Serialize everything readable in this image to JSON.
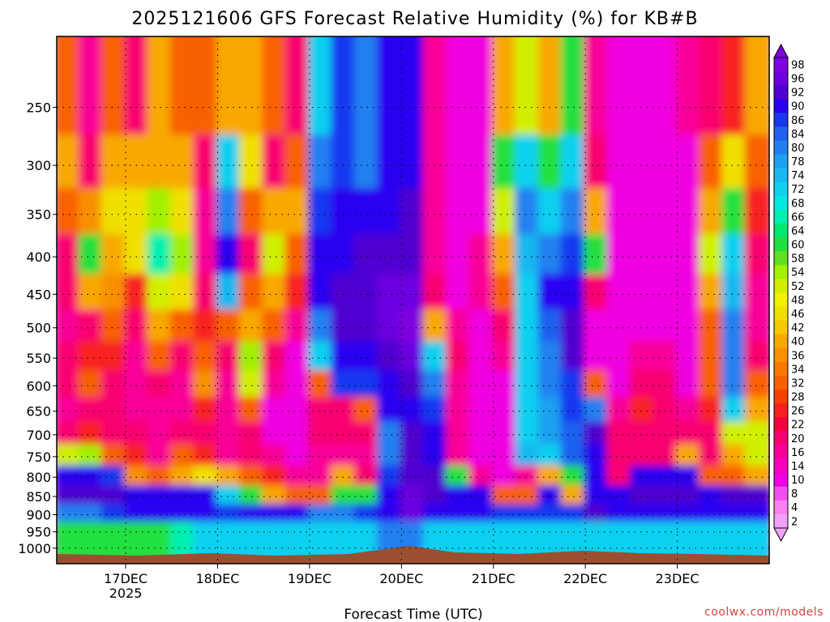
{
  "chart_data": {
    "type": "heatmap",
    "title": "2025121606 GFS Forecast Relative Humidity (%) for KB#B",
    "xlabel": "Forecast Time (UTC)",
    "ylabel": "",
    "credit": "coolwx.com/models",
    "y_axis": {
      "scale": "log-pressure",
      "reversed": true,
      "ylim": [
        1050,
        200
      ],
      "ticks": [
        "250",
        "300",
        "350",
        "400",
        "450",
        "500",
        "550",
        "600",
        "650",
        "700",
        "750",
        "800",
        "850",
        "900",
        "950",
        "1000"
      ]
    },
    "x_axis": {
      "ticks": [
        {
          "label": "17DEC",
          "sublabel": "2025"
        },
        {
          "label": "18DEC",
          "sublabel": ""
        },
        {
          "label": "19DEC",
          "sublabel": ""
        },
        {
          "label": "20DEC",
          "sublabel": ""
        },
        {
          "label": "21DEC",
          "sublabel": ""
        },
        {
          "label": "22DEC",
          "sublabel": ""
        },
        {
          "label": "23DEC",
          "sublabel": ""
        }
      ]
    },
    "grid": true,
    "colorbar": {
      "labels": [
        "98",
        "96",
        "92",
        "90",
        "86",
        "84",
        "80",
        "78",
        "74",
        "72",
        "68",
        "66",
        "64",
        "60",
        "58",
        "54",
        "52",
        "48",
        "46",
        "42",
        "40",
        "36",
        "34",
        "32",
        "28",
        "26",
        "22",
        "20",
        "16",
        "14",
        "10",
        "8",
        "4",
        "2"
      ],
      "colors": [
        "#8000e0",
        "#6c00e0",
        "#5000d0",
        "#2a00f0",
        "#1838f0",
        "#1e60f0",
        "#2080f0",
        "#1ea0f0",
        "#18b8f0",
        "#10d0f0",
        "#00e8e0",
        "#00f0b0",
        "#00e870",
        "#20e040",
        "#60e020",
        "#a0f000",
        "#d0f000",
        "#f0f000",
        "#f0e000",
        "#f8c800",
        "#f8a800",
        "#f89000",
        "#f87800",
        "#f86000",
        "#f84000",
        "#f82020",
        "#f80040",
        "#f80070",
        "#f80098",
        "#f800c0",
        "#f000e0",
        "#f050f0",
        "#f880f0",
        "#f0a0f8"
      ],
      "placement": "right"
    },
    "series": [
      {
        "time": "16DEC06",
        "humidity": [
          30,
          40,
          30,
          20,
          20,
          15,
          20,
          20,
          15,
          20,
          50,
          88,
          92,
          80,
          60
        ]
      },
      {
        "time": "16DEC12",
        "humidity": [
          15,
          20,
          35,
          60,
          40,
          20,
          25,
          30,
          20,
          25,
          55,
          88,
          92,
          80,
          60
        ]
      },
      {
        "time": "16DEC18",
        "humidity": [
          30,
          40,
          45,
          40,
          35,
          30,
          25,
          20,
          20,
          20,
          30,
          85,
          92,
          85,
          60
        ]
      },
      {
        "time": "17DEC00",
        "humidity": [
          20,
          40,
          45,
          45,
          25,
          20,
          15,
          15,
          15,
          20,
          25,
          35,
          90,
          88,
          60
        ]
      },
      {
        "time": "17DEC06",
        "humidity": [
          40,
          40,
          55,
          65,
          50,
          40,
          30,
          20,
          15,
          15,
          15,
          30,
          88,
          88,
          60
        ]
      },
      {
        "time": "17DEC12",
        "humidity": [
          30,
          40,
          45,
          55,
          45,
          30,
          20,
          15,
          15,
          20,
          30,
          40,
          88,
          90,
          65
        ]
      },
      {
        "time": "17DEC18",
        "humidity": [
          30,
          20,
          15,
          15,
          20,
          25,
          30,
          35,
          25,
          20,
          25,
          45,
          88,
          90,
          70
        ]
      },
      {
        "time": "18DEC00",
        "humidity": [
          40,
          70,
          80,
          88,
          75,
          30,
          20,
          15,
          15,
          15,
          15,
          40,
          70,
          85,
          70
        ]
      },
      {
        "time": "18DEC06",
        "humidity": [
          40,
          45,
          30,
          20,
          30,
          40,
          55,
          50,
          30,
          20,
          20,
          30,
          60,
          90,
          70
        ]
      },
      {
        "time": "18DEC12",
        "humidity": [
          30,
          20,
          40,
          50,
          40,
          30,
          20,
          15,
          10,
          10,
          15,
          25,
          40,
          90,
          70
        ]
      },
      {
        "time": "18DEC18",
        "humidity": [
          20,
          30,
          40,
          30,
          25,
          15,
          10,
          10,
          10,
          10,
          10,
          15,
          30,
          90,
          70
        ]
      },
      {
        "time": "19DEC00",
        "humidity": [
          70,
          80,
          85,
          90,
          88,
          80,
          70,
          30,
          20,
          20,
          15,
          15,
          30,
          80,
          70
        ]
      },
      {
        "time": "19DEC06",
        "humidity": [
          85,
          85,
          88,
          90,
          92,
          92,
          90,
          85,
          20,
          20,
          15,
          40,
          60,
          80,
          70
        ]
      },
      {
        "time": "19DEC12",
        "humidity": [
          80,
          80,
          88,
          92,
          92,
          92,
          90,
          85,
          30,
          20,
          15,
          20,
          60,
          85,
          70
        ]
      },
      {
        "time": "19DEC18",
        "humidity": [
          88,
          88,
          90,
          92,
          96,
          96,
          92,
          90,
          88,
          80,
          80,
          85,
          90,
          90,
          80
        ]
      },
      {
        "time": "20DEC00",
        "humidity": [
          88,
          88,
          92,
          92,
          96,
          98,
          96,
          92,
          90,
          92,
          92,
          92,
          96,
          96,
          80
        ]
      },
      {
        "time": "20DEC06",
        "humidity": [
          15,
          15,
          15,
          15,
          20,
          40,
          70,
          80,
          85,
          88,
          90,
          92,
          92,
          90,
          70
        ]
      },
      {
        "time": "20DEC12",
        "humidity": [
          10,
          10,
          10,
          10,
          10,
          15,
          20,
          15,
          15,
          15,
          15,
          60,
          90,
          90,
          70
        ]
      },
      {
        "time": "20DEC18",
        "humidity": [
          10,
          10,
          10,
          15,
          15,
          10,
          10,
          10,
          10,
          10,
          10,
          15,
          90,
          88,
          70
        ]
      },
      {
        "time": "21DEC00",
        "humidity": [
          40,
          60,
          50,
          40,
          30,
          20,
          15,
          10,
          10,
          10,
          10,
          10,
          30,
          85,
          70
        ]
      },
      {
        "time": "21DEC06",
        "humidity": [
          50,
          70,
          80,
          75,
          70,
          72,
          72,
          72,
          70,
          70,
          75,
          15,
          30,
          85,
          70
        ]
      },
      {
        "time": "21DEC12",
        "humidity": [
          40,
          60,
          70,
          80,
          88,
          84,
          80,
          80,
          78,
          78,
          72,
          40,
          88,
          85,
          70
        ]
      },
      {
        "time": "21DEC18",
        "humidity": [
          60,
          70,
          80,
          86,
          88,
          92,
          92,
          86,
          86,
          84,
          84,
          60,
          40,
          85,
          70
        ]
      },
      {
        "time": "22DEC00",
        "humidity": [
          15,
          20,
          40,
          60,
          20,
          10,
          10,
          30,
          80,
          92,
          90,
          90,
          90,
          92,
          70
        ]
      },
      {
        "time": "22DEC06",
        "humidity": [
          10,
          10,
          10,
          10,
          10,
          10,
          10,
          10,
          15,
          20,
          20,
          20,
          88,
          90,
          70
        ]
      },
      {
        "time": "22DEC12",
        "humidity": [
          10,
          10,
          10,
          10,
          10,
          10,
          15,
          20,
          25,
          20,
          20,
          90,
          92,
          88,
          70
        ]
      },
      {
        "time": "22DEC18",
        "humidity": [
          10,
          10,
          10,
          10,
          10,
          10,
          15,
          20,
          20,
          20,
          20,
          90,
          92,
          88,
          70
        ]
      },
      {
        "time": "23DEC00",
        "humidity": [
          15,
          10,
          10,
          10,
          10,
          10,
          10,
          10,
          15,
          20,
          40,
          90,
          92,
          90,
          70
        ]
      },
      {
        "time": "23DEC06",
        "humidity": [
          20,
          30,
          40,
          50,
          40,
          30,
          30,
          30,
          25,
          20,
          20,
          30,
          88,
          90,
          70
        ]
      },
      {
        "time": "23DEC12",
        "humidity": [
          25,
          45,
          60,
          70,
          75,
          80,
          80,
          80,
          70,
          50,
          40,
          30,
          92,
          90,
          70
        ]
      },
      {
        "time": "23DEC18",
        "humidity": [
          40,
          30,
          25,
          20,
          15,
          15,
          20,
          30,
          40,
          50,
          50,
          40,
          92,
          90,
          70
        ]
      }
    ],
    "levels": [
      250,
      300,
      350,
      400,
      450,
      500,
      550,
      600,
      650,
      700,
      750,
      800,
      850,
      900,
      950
    ]
  }
}
